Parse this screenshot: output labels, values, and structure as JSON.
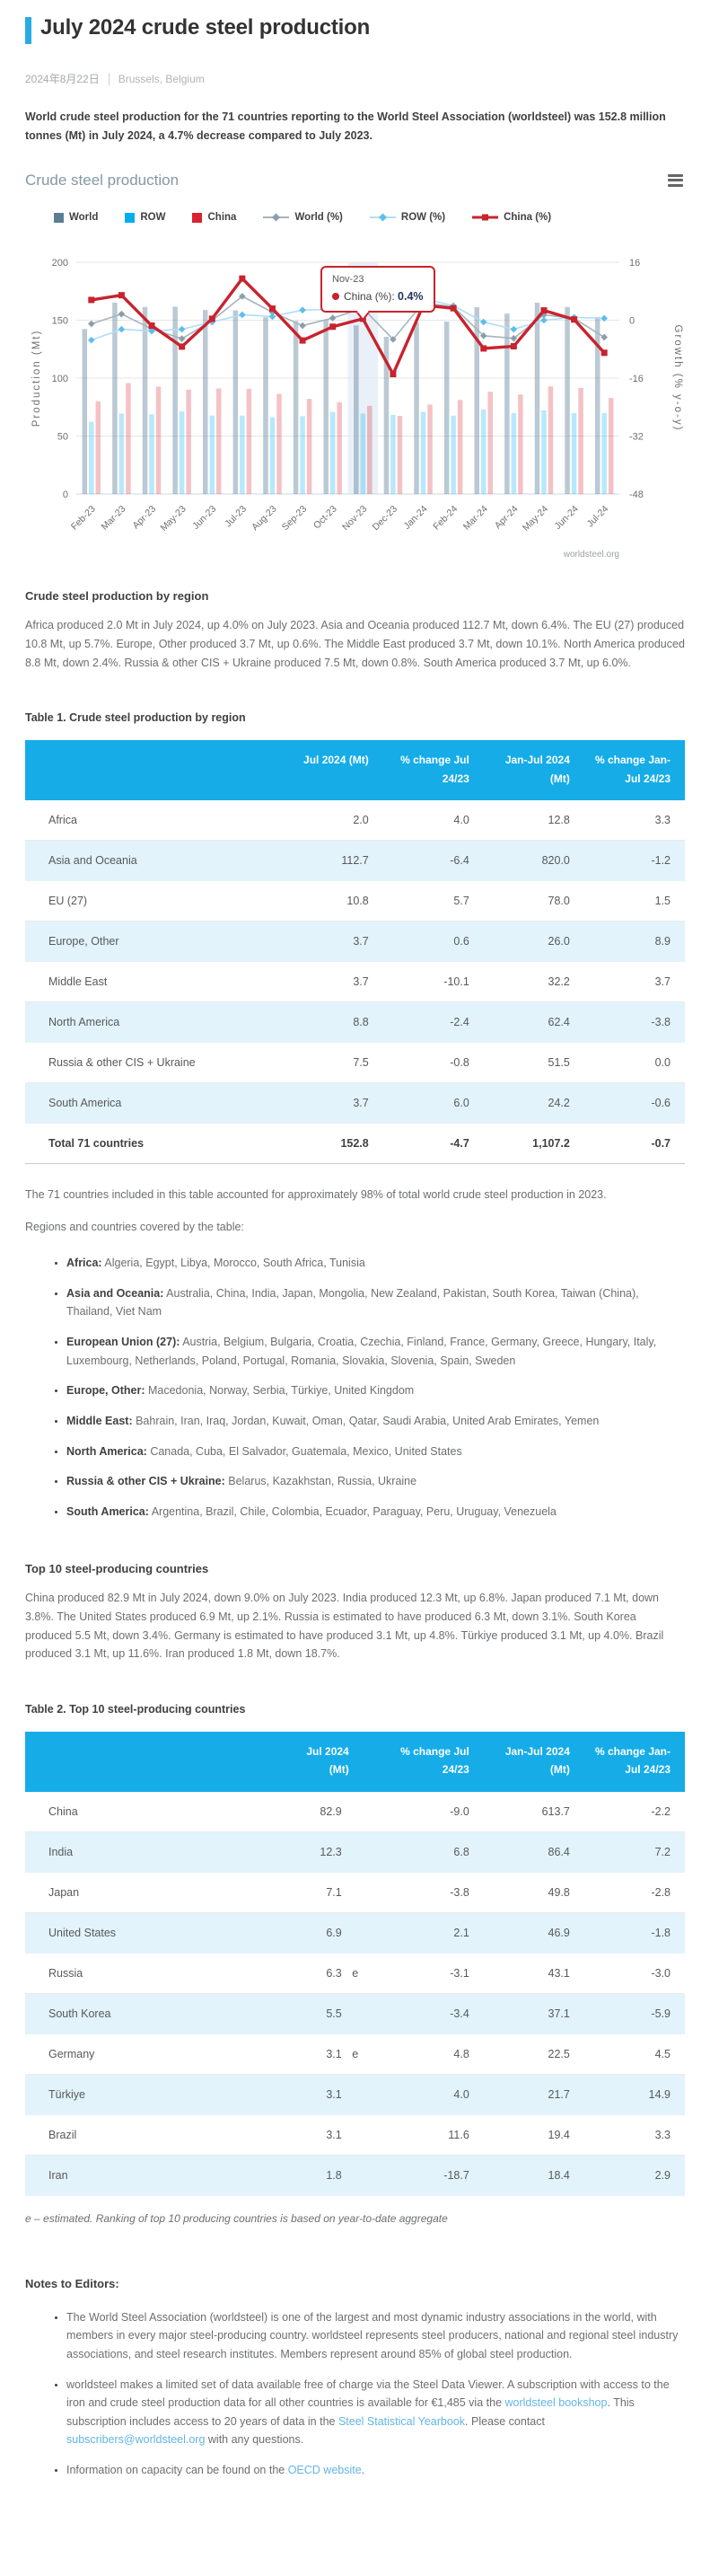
{
  "page": {
    "title": "July 2024 crude steel production",
    "date": "2024年8月22日",
    "location": "Brussels, Belgium",
    "intro": "World crude steel production for the 71 countries reporting to the World Steel Association (worldsteel) was 152.8 million tonnes (Mt) in July 2024, a 4.7% decrease compared to July 2023."
  },
  "chart": {
    "title": "Crude steel production",
    "watermark": "worldsteel.org",
    "menu_icon": "hamburger-icon"
  },
  "chart_data": {
    "type": "combo bar + line, dual axis",
    "categories": [
      "Feb-23",
      "Mar-23",
      "Apr-23",
      "May-23",
      "Jun-23",
      "Jul-23",
      "Aug-23",
      "Sep-23",
      "Oct-23",
      "Nov-23",
      "Dec-23",
      "Jan-24",
      "Feb-24",
      "Mar-24",
      "Apr-24",
      "May-24",
      "Jun-24",
      "Jul-24"
    ],
    "bar_series": [
      {
        "name": "World",
        "color": "#5B7E95",
        "opacity": 0.42,
        "values": [
          142.4,
          165.1,
          161.4,
          161.6,
          158.8,
          158.5,
          152.6,
          149.3,
          150.0,
          145.5,
          135.7,
          148.1,
          148.8,
          161.2,
          155.7,
          165.1,
          161.4,
          152.8
        ]
      },
      {
        "name": "ROW",
        "color": "#00AEEF",
        "opacity": 0.28,
        "values": [
          62.3,
          69.4,
          68.8,
          71.5,
          67.7,
          67.7,
          66.2,
          67.2,
          70.9,
          69.4,
          68.3,
          70.9,
          67.6,
          72.9,
          69.8,
          72.2,
          69.8,
          69.9
        ]
      },
      {
        "name": "China",
        "color": "#D9232E",
        "opacity": 0.28,
        "values": [
          80.1,
          95.7,
          92.6,
          90.1,
          91.1,
          90.8,
          86.4,
          82.1,
          79.1,
          76.1,
          67.4,
          77.2,
          81.2,
          88.3,
          85.9,
          92.9,
          91.6,
          82.9
        ]
      }
    ],
    "line_series": [
      {
        "name": "World (%)",
        "line_color": "#A6B4BE",
        "marker_color": "#8C9EAC",
        "marker": "diamond",
        "width": 1.6,
        "values": [
          -1.0,
          1.7,
          -2.4,
          -5.1,
          -0.1,
          6.6,
          2.2,
          -1.5,
          0.6,
          3.3,
          -5.3,
          4.8,
          3.7,
          -4.3,
          -5.0,
          1.5,
          0.5,
          -4.7
        ]
      },
      {
        "name": "ROW (%)",
        "line_color": "#AEDFF7",
        "marker_color": "#5FBDEC",
        "marker": "diamond",
        "width": 1.6,
        "values": [
          -5.5,
          -2.5,
          -3.0,
          -2.5,
          -0.5,
          1.5,
          1.0,
          2.8,
          3.0,
          5.5,
          6.0,
          6.0,
          4.0,
          -0.5,
          -2.5,
          0.0,
          0.8,
          0.5
        ]
      },
      {
        "name": "China (%)",
        "line_color": "#C8232E",
        "marker_color": "#C8232E",
        "marker": "square",
        "width": 3.4,
        "values": [
          5.6,
          6.9,
          -1.5,
          -7.3,
          0.4,
          11.5,
          3.2,
          -5.6,
          -1.8,
          0.4,
          -14.9,
          4.1,
          3.3,
          -7.8,
          -7.2,
          2.7,
          0.2,
          -9.0
        ]
      }
    ],
    "y_left": {
      "label": "Production (Mt)",
      "ticks": [
        0,
        50,
        100,
        150,
        200
      ],
      "range": [
        0,
        200
      ]
    },
    "y_right": {
      "label": "Growth (% y-o-y)",
      "ticks": [
        16,
        0,
        -16,
        -32,
        -48
      ],
      "range": [
        -48,
        16
      ]
    },
    "legend_position": "top",
    "grid": true,
    "highlight_category": "Nov-23",
    "tooltip": {
      "category": "Nov-23",
      "series": "China (%)",
      "value": "0.4%"
    }
  },
  "region_section": {
    "heading": "Crude steel production by region",
    "body": "Africa produced 2.0 Mt in July 2024, up 4.0% on July 2023. Asia and Oceania produced 112.7 Mt, down 6.4%. The EU (27) produced 10.8 Mt, up 5.7%. Europe, Other produced 3.7 Mt, up 0.6%. The Middle East produced 3.7 Mt, down 10.1%. North America produced 8.8 Mt, down 2.4%. Russia & other CIS + Ukraine produced 7.5 Mt, down 0.8%. South America produced 3.7 Mt, up 6.0%."
  },
  "table1": {
    "caption": "Table 1. Crude steel production by region",
    "headers": [
      "",
      "Jul 2024 (Mt)",
      "% change Jul 24/23",
      "Jan-Jul 2024 (Mt)",
      "% change Jan-Jul 24/23"
    ],
    "rows": [
      [
        "Africa",
        "2.0",
        "4.0",
        "12.8",
        "3.3"
      ],
      [
        "Asia and Oceania",
        "112.7",
        "-6.4",
        "820.0",
        "-1.2"
      ],
      [
        "EU (27)",
        "10.8",
        "5.7",
        "78.0",
        "1.5"
      ],
      [
        "Europe, Other",
        "3.7",
        "0.6",
        "26.0",
        "8.9"
      ],
      [
        "Middle East",
        "3.7",
        "-10.1",
        "32.2",
        "3.7"
      ],
      [
        "North America",
        "8.8",
        "-2.4",
        "62.4",
        "-3.8"
      ],
      [
        "Russia & other CIS + Ukraine",
        "7.5",
        "-0.8",
        "51.5",
        "0.0"
      ],
      [
        "South America",
        "3.7",
        "6.0",
        "24.2",
        "-0.6"
      ]
    ],
    "total_row": [
      "Total 71 countries",
      "152.8",
      "-4.7",
      "1,107.2",
      "-0.7"
    ]
  },
  "table1_notes": {
    "coverage": "The 71 countries included in this table accounted for approximately 98% of total world crude steel production in 2023.",
    "regions_intro": "Regions and countries covered by the table:"
  },
  "regions_list": [
    {
      "label": "Africa:",
      "countries": " Algeria, Egypt, Libya, Morocco, South Africa, Tunisia"
    },
    {
      "label": "Asia and Oceania:",
      "countries": " Australia, China, India, Japan, Mongolia, New Zealand, Pakistan, South Korea, Taiwan (China), Thailand, Viet Nam"
    },
    {
      "label": "European Union (27):",
      "countries": " Austria, Belgium, Bulgaria, Croatia, Czechia, Finland, France, Germany, Greece, Hungary, Italy, Luxembourg, Netherlands, Poland, Portugal, Romania, Slovakia, Slovenia, Spain, Sweden"
    },
    {
      "label": "Europe, Other:",
      "countries": " Macedonia, Norway, Serbia, Türkiye, United Kingdom"
    },
    {
      "label": "Middle East:",
      "countries": " Bahrain, Iran, Iraq, Jordan, Kuwait, Oman, Qatar, Saudi Arabia, United Arab Emirates, Yemen"
    },
    {
      "label": "North America:",
      "countries": " Canada, Cuba, El Salvador, Guatemala, Mexico, United States"
    },
    {
      "label": "Russia & other CIS + Ukraine:",
      "countries": " Belarus, Kazakhstan, Russia, Ukraine"
    },
    {
      "label": "South America:",
      "countries": " Argentina, Brazil, Chile, Colombia, Ecuador, Paraguay, Peru, Uruguay, Venezuela"
    }
  ],
  "top10_section": {
    "heading": "Top 10 steel-producing countries",
    "body": "China produced 82.9 Mt in July 2024, down 9.0% on July 2023. India produced 12.3 Mt, up 6.8%. Japan produced 7.1 Mt, down 3.8%. The United States produced 6.9 Mt, up 2.1%. Russia is estimated to have produced 6.3 Mt, down 3.1%. South Korea produced 5.5 Mt, down 3.4%. Germany is estimated to have produced 3.1 Mt, up 4.8%. Türkiye produced 3.1 Mt, up 4.0%. Brazil produced 3.1 Mt, up 11.6%. Iran produced 1.8 Mt, down 18.7%."
  },
  "table2": {
    "caption": "Table 2. Top 10 steel-producing countries",
    "headers": [
      "",
      "Jul 2024 (Mt)",
      "% change Jul 24/23",
      "Jan-Jul 2024 (Mt)",
      "% change Jan-Jul 24/23"
    ],
    "rows": [
      {
        "country": "China",
        "jul": "82.9",
        "e": "",
        "chg": "-9.0",
        "janjul": "613.7",
        "chg_ytd": "-2.2"
      },
      {
        "country": "India",
        "jul": "12.3",
        "e": "",
        "chg": "6.8",
        "janjul": "86.4",
        "chg_ytd": "7.2"
      },
      {
        "country": "Japan",
        "jul": "7.1",
        "e": "",
        "chg": "-3.8",
        "janjul": "49.8",
        "chg_ytd": "-2.8"
      },
      {
        "country": "United States",
        "jul": "6.9",
        "e": "",
        "chg": "2.1",
        "janjul": "46.9",
        "chg_ytd": "-1.8"
      },
      {
        "country": "Russia",
        "jul": "6.3",
        "e": "e",
        "chg": "-3.1",
        "janjul": "43.1",
        "chg_ytd": "-3.0"
      },
      {
        "country": "South Korea",
        "jul": "5.5",
        "e": "",
        "chg": "-3.4",
        "janjul": "37.1",
        "chg_ytd": "-5.9"
      },
      {
        "country": "Germany",
        "jul": "3.1",
        "e": "e",
        "chg": "4.8",
        "janjul": "22.5",
        "chg_ytd": "4.5"
      },
      {
        "country": "Türkiye",
        "jul": "3.1",
        "e": "",
        "chg": "4.0",
        "janjul": "21.7",
        "chg_ytd": "14.9"
      },
      {
        "country": "Brazil",
        "jul": "3.1",
        "e": "",
        "chg": "11.6",
        "janjul": "19.4",
        "chg_ytd": "3.3"
      },
      {
        "country": "Iran",
        "jul": "1.8",
        "e": "",
        "chg": "-18.7",
        "janjul": "18.4",
        "chg_ytd": "2.9"
      }
    ],
    "note": "e – estimated. Ranking of top 10 producing countries is based on year-to-date aggregate"
  },
  "notes_section": {
    "heading": "Notes to Editors:",
    "bullets": [
      [
        {
          "t": "The World Steel Association (worldsteel) is one of the largest and most dynamic industry associations in the world, with members in every major steel-producing country. worldsteel represents steel producers, national and regional steel industry associations, and steel research institutes. Members represent around 85% of global steel production."
        }
      ],
      [
        {
          "t": "worldsteel makes a limited set of data available free of charge via the Steel Data Viewer. A subscription with access to the iron and crude steel production data for all other countries is available for €1,485  via the "
        },
        {
          "t": "worldsteel bookshop",
          "link": true
        },
        {
          "t": ". This subscription includes access to 20 years of data in the "
        },
        {
          "t": "Steel Statistical Yearbook",
          "link": true
        },
        {
          "t": ". Please contact "
        },
        {
          "t": "subscribers@worldsteel.org",
          "link": true
        },
        {
          "t": " with any questions."
        }
      ],
      [
        {
          "t": "Information on capacity can be found on the "
        },
        {
          "t": "OECD website",
          "link": true
        },
        {
          "t": "."
        }
      ]
    ]
  },
  "colors": {
    "accent": "#29ABE2",
    "table_header": "#15ACE8",
    "table_alt_row": "#E2F3FB",
    "world_bar": "#5B7E95",
    "row_bar": "#00AEEF",
    "china_bar": "#D9232E",
    "link": "#62B5E5"
  }
}
